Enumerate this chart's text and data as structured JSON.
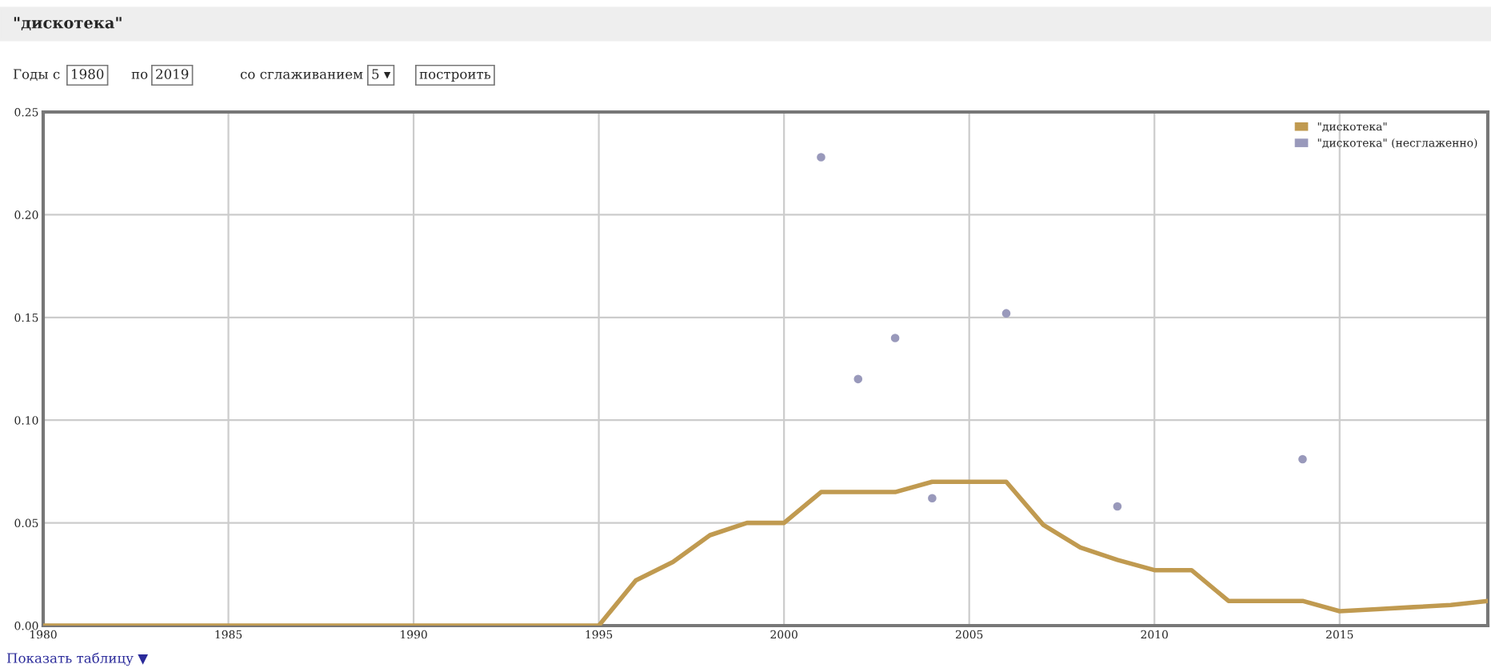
{
  "chart_data": {
    "type": "line",
    "title": "\"дискотека\"",
    "annotations": [
      "Годы с",
      "1980",
      "по",
      "2019",
      "со сглаживанием",
      "5 ▾",
      "построить",
      "Показать таблицу ▼"
    ],
    "series": [
      {
        "name": "\"дискотека\"",
        "color": "#c09a50",
        "x": [
          1980,
          1981,
          1982,
          1983,
          1984,
          1985,
          1986,
          1987,
          1988,
          1989,
          1990,
          1991,
          1992,
          1993,
          1994,
          1995,
          1996,
          1997,
          1998,
          1999,
          2000,
          2001,
          2002,
          2003,
          2004,
          2005,
          2006,
          2007,
          2008,
          2009,
          2010,
          2011,
          2012,
          2013,
          2014,
          2015,
          2016,
          2017,
          2018,
          2019
        ],
        "values": [
          0,
          0,
          0,
          0,
          0,
          0,
          0,
          0,
          0,
          0,
          0,
          0,
          0,
          0,
          0,
          0,
          0.022,
          0.031,
          0.044,
          0.05,
          0.05,
          0.065,
          0.065,
          0.065,
          0.07,
          0.07,
          0.07,
          0.049,
          0.038,
          0.032,
          0.027,
          0.027,
          0.012,
          0.012,
          0.012,
          0.007,
          0.008,
          0.009,
          0.01,
          0.012
        ]
      },
      {
        "name": "\"дискотека\" (несглаженно)",
        "color": "#9999bb",
        "type": "scatter",
        "marker": "circle",
        "x": [
          2001,
          2002,
          2003,
          2004,
          2006,
          2009,
          2014
        ],
        "values": [
          0.228,
          0.12,
          0.14,
          0.062,
          0.152,
          0.058,
          0.081
        ]
      }
    ],
    "xlim": [
      1980,
      2019
    ],
    "xticks": [
      1980,
      1985,
      1990,
      1995,
      2000,
      2005,
      2010,
      2015
    ],
    "ylim": [
      0,
      0.25
    ],
    "yticks": [
      {
        "value": 0,
        "label": "0.00"
      },
      {
        "value": 0.05,
        "label": "0.05"
      },
      {
        "value": 0.1,
        "label": "0.10"
      },
      {
        "value": 0.15,
        "label": "0.15"
      },
      {
        "value": 0.2,
        "label": "0.20"
      },
      {
        "value": 0.25,
        "label": "0.25"
      }
    ],
    "grid": true,
    "legend": "top right"
  }
}
